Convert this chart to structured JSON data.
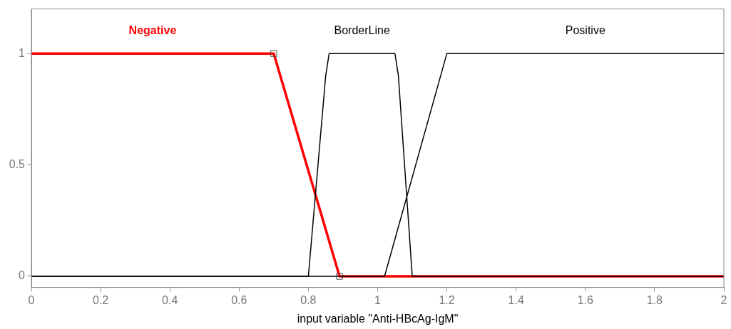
{
  "chart_data": {
    "type": "line",
    "xlabel": "input variable \"Anti-HBcAg-IgM\"",
    "xlim": [
      0,
      2
    ],
    "xticks": [
      0,
      0.2,
      0.4,
      0.6,
      0.8,
      1,
      1.2,
      1.4,
      1.6,
      1.8,
      2
    ],
    "ylim": [
      -0.05,
      1.2
    ],
    "yticks": [
      0,
      0.5,
      1
    ],
    "grid": false,
    "legend": false,
    "line_style": "solid",
    "series": [
      {
        "name": "Negative",
        "color": "#ff0000",
        "x": [
          0,
          0.7,
          0.89,
          2
        ],
        "values": [
          1,
          1,
          0,
          0
        ],
        "marker": "square"
      },
      {
        "name": "BorderLine",
        "color": "#000000",
        "x": [
          0,
          0.8,
          0.85,
          0.86,
          1.05,
          1.06,
          1.1,
          2
        ],
        "values": [
          0,
          0,
          0.9,
          1,
          1,
          0.9,
          0,
          0
        ],
        "marker": "none"
      },
      {
        "name": "Positive",
        "color": "#000000",
        "x": [
          0,
          1.02,
          1.2,
          2
        ],
        "values": [
          0,
          0,
          1,
          1
        ],
        "marker": "none"
      }
    ]
  }
}
